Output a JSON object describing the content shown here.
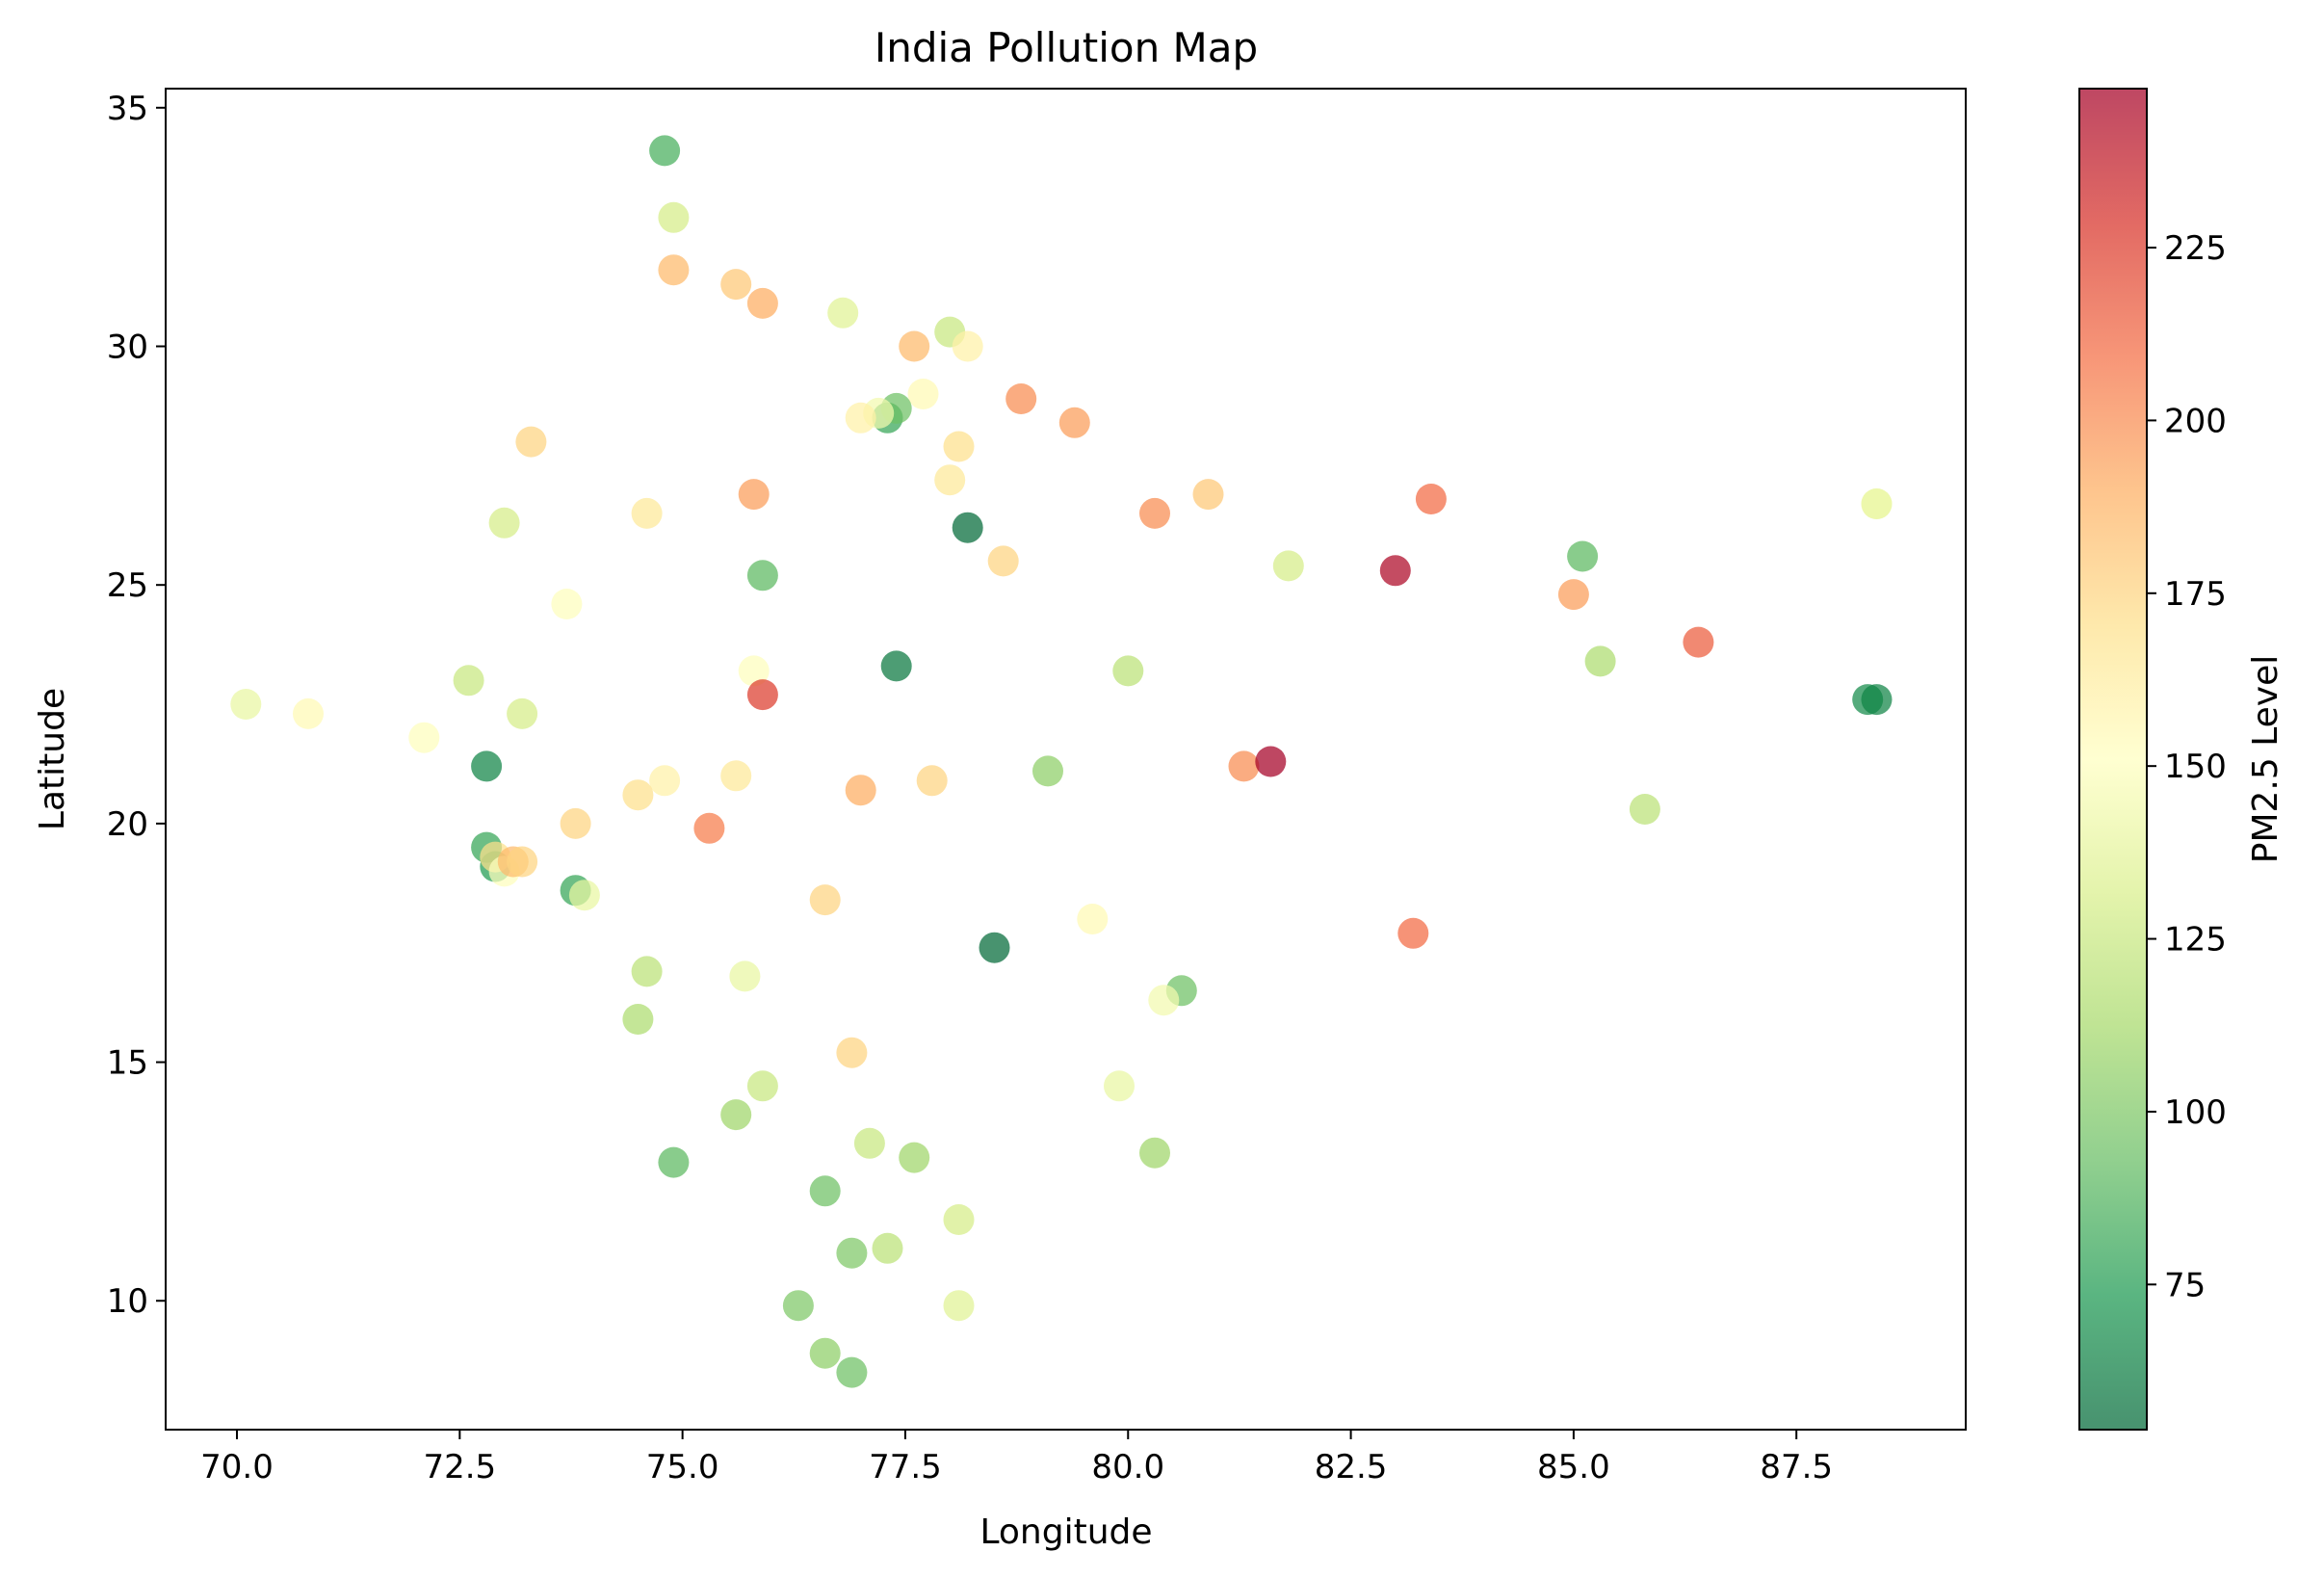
{
  "chart_data": {
    "type": "scatter",
    "title": "India Pollution Map",
    "xlabel": "Longitude",
    "ylabel": "Latitude",
    "xlim": [
      69.2,
      89.4
    ],
    "ylim": [
      7.3,
      35.4
    ],
    "xticks": [
      "70.0",
      "72.5",
      "75.0",
      "77.5",
      "80.0",
      "82.5",
      "85.0",
      "87.5"
    ],
    "yticks": [
      "10",
      "15",
      "20",
      "25",
      "30",
      "35"
    ],
    "grid": false,
    "colorbar": {
      "label": "PM2.5 Level",
      "colormap": "RdYlGn_r",
      "range": [
        54,
        248
      ],
      "ticks": [
        "75",
        "100",
        "125",
        "150",
        "175",
        "200",
        "225"
      ]
    },
    "points": [
      [
        74.8,
        34.1,
        85
      ],
      [
        74.9,
        32.7,
        130
      ],
      [
        74.9,
        31.6,
        185
      ],
      [
        75.6,
        31.3,
        180
      ],
      [
        75.9,
        30.9,
        190
      ],
      [
        76.8,
        30.7,
        135
      ],
      [
        78.0,
        30.3,
        125
      ],
      [
        78.2,
        30.0,
        160
      ],
      [
        77.6,
        30.0,
        185
      ],
      [
        77.7,
        29.0,
        155
      ],
      [
        78.8,
        28.9,
        200
      ],
      [
        79.4,
        28.4,
        195
      ],
      [
        77.3,
        28.5,
        80
      ],
      [
        77.4,
        28.7,
        95
      ],
      [
        77.2,
        28.6,
        145
      ],
      [
        77.0,
        28.5,
        160
      ],
      [
        73.3,
        28.0,
        175
      ],
      [
        78.1,
        27.9,
        170
      ],
      [
        78.0,
        27.2,
        165
      ],
      [
        75.8,
        26.9,
        195
      ],
      [
        80.9,
        26.9,
        180
      ],
      [
        83.4,
        26.8,
        210
      ],
      [
        88.4,
        26.7,
        145
      ],
      [
        74.6,
        26.5,
        165
      ],
      [
        80.3,
        26.5,
        200
      ],
      [
        73.0,
        26.3,
        130
      ],
      [
        78.2,
        26.2,
        55
      ],
      [
        88.4,
        26.7,
        140
      ],
      [
        78.6,
        25.5,
        175
      ],
      [
        81.8,
        25.4,
        130
      ],
      [
        83.0,
        25.3,
        245
      ],
      [
        85.1,
        25.6,
        90
      ],
      [
        75.9,
        25.2,
        90
      ],
      [
        73.7,
        24.6,
        150
      ],
      [
        85.0,
        24.8,
        195
      ],
      [
        86.4,
        23.8,
        215
      ],
      [
        85.3,
        23.4,
        115
      ],
      [
        75.8,
        23.2,
        150
      ],
      [
        77.4,
        23.3,
        60
      ],
      [
        80.0,
        23.2,
        120
      ],
      [
        72.6,
        23.0,
        125
      ],
      [
        70.1,
        22.5,
        140
      ],
      [
        70.8,
        22.3,
        155
      ],
      [
        73.2,
        22.3,
        130
      ],
      [
        75.9,
        22.7,
        225
      ],
      [
        88.3,
        22.6,
        68
      ],
      [
        88.4,
        22.6,
        65
      ],
      [
        72.1,
        21.8,
        150
      ],
      [
        72.8,
        21.2,
        65
      ],
      [
        79.1,
        21.1,
        105
      ],
      [
        81.3,
        21.2,
        200
      ],
      [
        81.6,
        21.3,
        248
      ],
      [
        75.6,
        21.0,
        165
      ],
      [
        74.8,
        20.9,
        160
      ],
      [
        77.8,
        20.9,
        175
      ],
      [
        77.0,
        20.7,
        190
      ],
      [
        74.5,
        20.6,
        170
      ],
      [
        85.8,
        20.3,
        120
      ],
      [
        73.8,
        20.0,
        175
      ],
      [
        75.3,
        19.9,
        205
      ],
      [
        72.8,
        19.5,
        80
      ],
      [
        72.9,
        19.1,
        75
      ],
      [
        72.9,
        19.3,
        170
      ],
      [
        73.0,
        19.0,
        150
      ],
      [
        73.1,
        19.2,
        185
      ],
      [
        73.2,
        19.2,
        175
      ],
      [
        73.8,
        18.6,
        80
      ],
      [
        73.9,
        18.5,
        140
      ],
      [
        76.6,
        18.4,
        175
      ],
      [
        79.6,
        18.0,
        155
      ],
      [
        83.2,
        17.7,
        210
      ],
      [
        78.5,
        17.4,
        55
      ],
      [
        74.6,
        16.9,
        120
      ],
      [
        75.7,
        16.8,
        140
      ],
      [
        80.6,
        16.5,
        95
      ],
      [
        80.4,
        16.3,
        145
      ],
      [
        74.5,
        15.9,
        115
      ],
      [
        76.9,
        15.2,
        175
      ],
      [
        79.9,
        14.5,
        140
      ],
      [
        75.9,
        14.5,
        125
      ],
      [
        75.6,
        13.9,
        110
      ],
      [
        77.1,
        13.3,
        125
      ],
      [
        77.6,
        13.0,
        110
      ],
      [
        80.3,
        13.1,
        110
      ],
      [
        74.9,
        12.9,
        90
      ],
      [
        76.6,
        12.3,
        95
      ],
      [
        78.1,
        11.7,
        130
      ],
      [
        77.3,
        11.1,
        120
      ],
      [
        76.9,
        11.0,
        100
      ],
      [
        76.3,
        9.9,
        100
      ],
      [
        78.1,
        9.9,
        135
      ],
      [
        76.6,
        8.9,
        105
      ],
      [
        76.9,
        8.5,
        95
      ]
    ]
  }
}
